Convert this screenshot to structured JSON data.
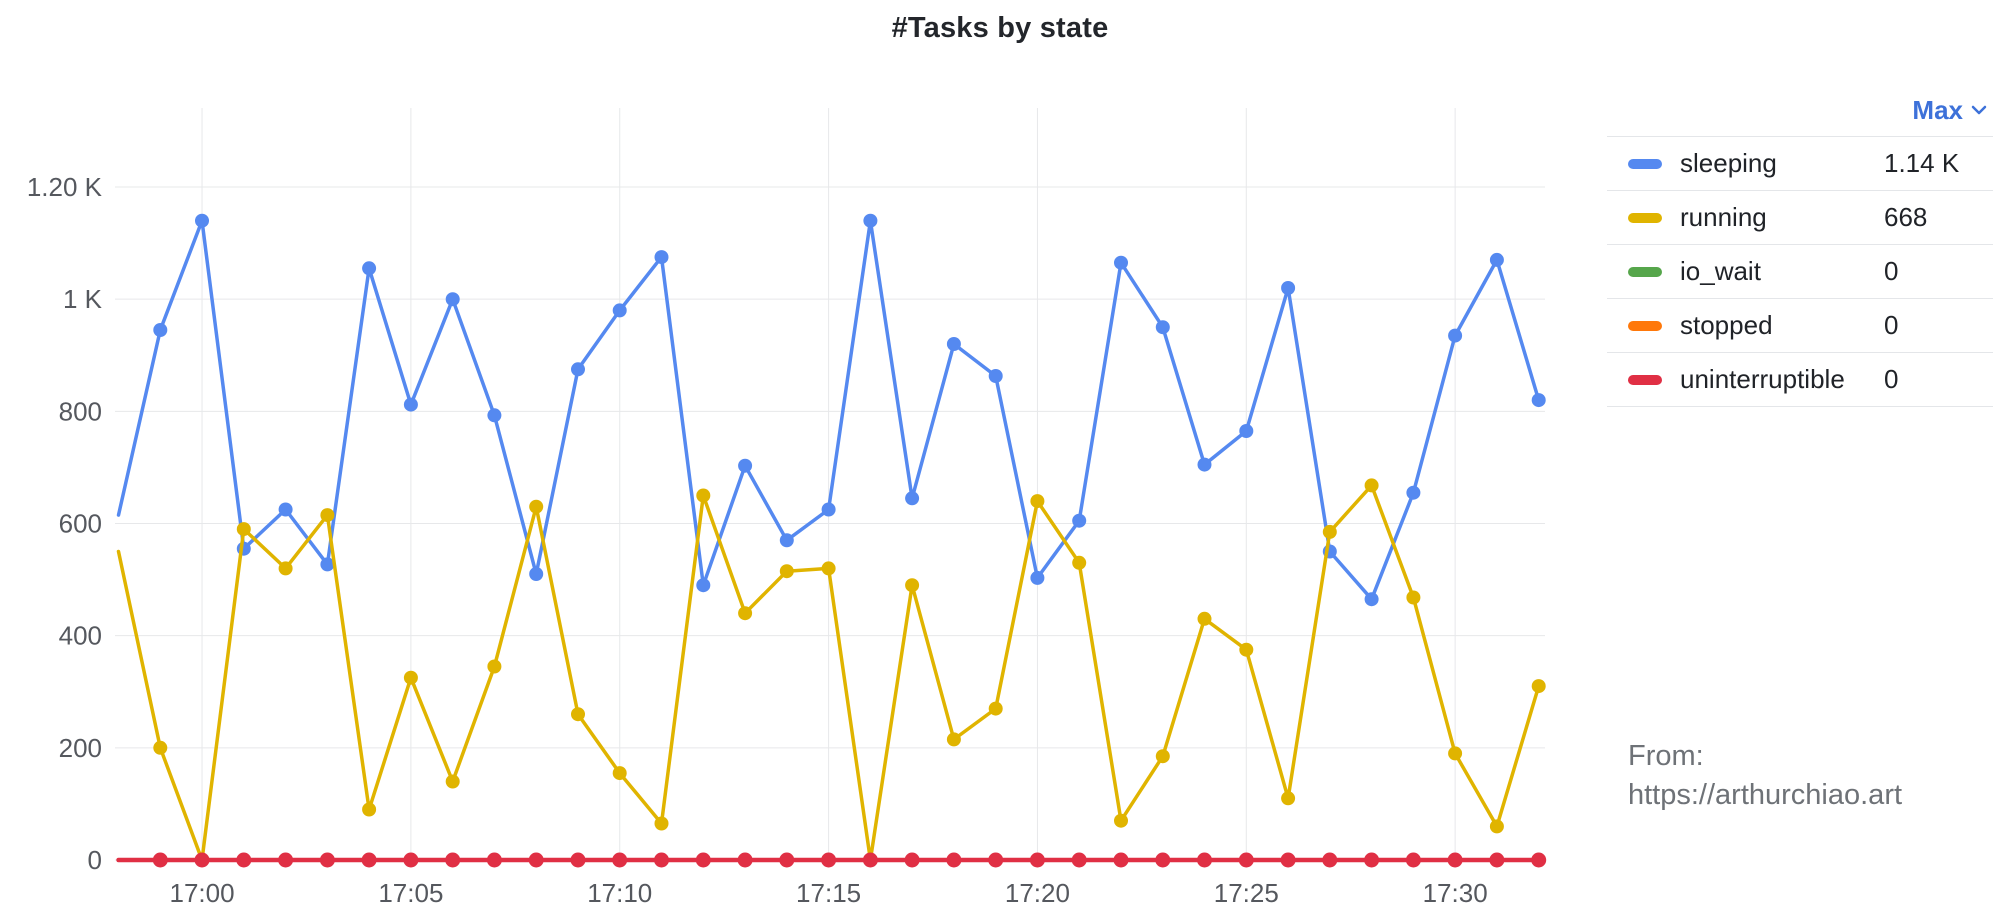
{
  "title": "#Tasks by state",
  "legend": {
    "header": "Max",
    "rows": [
      {
        "label": "sleeping",
        "value": "1.14 K",
        "color": "#5589F0"
      },
      {
        "label": "running",
        "value": "668",
        "color": "#E0B400"
      },
      {
        "label": "io_wait",
        "value": "0",
        "color": "#56A64B"
      },
      {
        "label": "stopped",
        "value": "0",
        "color": "#FF780A"
      },
      {
        "label": "uninterruptible",
        "value": "0",
        "color": "#E02F44"
      }
    ]
  },
  "attribution": {
    "line1": "From:",
    "line2": "https://arthurchiao.art"
  },
  "colors": {
    "grid": "#E7E8EA",
    "axis_text": "#55585E",
    "header_blue": "#3D71D9",
    "separator": "#E4E6E9"
  },
  "chart_data": {
    "type": "line",
    "title": "#Tasks by state",
    "xlabel": "",
    "ylabel": "",
    "ylim": [
      0,
      1270
    ],
    "grid": true,
    "legend_position": "right",
    "x": [
      "16:58",
      "16:59",
      "17:00",
      "17:01",
      "17:02",
      "17:03",
      "17:04",
      "17:05",
      "17:06",
      "17:07",
      "17:08",
      "17:09",
      "17:10",
      "17:11",
      "17:12",
      "17:13",
      "17:14",
      "17:15",
      "17:16",
      "17:17",
      "17:18",
      "17:19",
      "17:20",
      "17:21",
      "17:22",
      "17:23",
      "17:24",
      "17:25",
      "17:26",
      "17:27",
      "17:28",
      "17:29",
      "17:30",
      "17:31",
      "17:32"
    ],
    "x_ticks": [
      "17:00",
      "17:05",
      "17:10",
      "17:15",
      "17:20",
      "17:25",
      "17:30"
    ],
    "y_ticks": [
      {
        "value": 0,
        "label": "0"
      },
      {
        "value": 200,
        "label": "200"
      },
      {
        "value": 400,
        "label": "400"
      },
      {
        "value": 600,
        "label": "600"
      },
      {
        "value": 800,
        "label": "800"
      },
      {
        "value": 1000,
        "label": "1 K"
      },
      {
        "value": 1200,
        "label": "1.20 K"
      }
    ],
    "series": [
      {
        "name": "sleeping",
        "color": "#5589F0",
        "max_label": "1.14 K",
        "values": [
          615,
          945,
          1140,
          555,
          625,
          527,
          1055,
          812,
          1000,
          793,
          510,
          875,
          980,
          1075,
          490,
          703,
          570,
          625,
          1140,
          645,
          920,
          863,
          503,
          605,
          1065,
          950,
          705,
          765,
          1020,
          550,
          465,
          655,
          935,
          1070,
          820
        ]
      },
      {
        "name": "running",
        "color": "#E0B400",
        "max_label": "668",
        "values": [
          550,
          200,
          0,
          590,
          520,
          615,
          90,
          325,
          140,
          345,
          630,
          260,
          155,
          65,
          650,
          440,
          515,
          520,
          0,
          490,
          215,
          270,
          640,
          530,
          70,
          185,
          430,
          375,
          110,
          585,
          668,
          468,
          190,
          60,
          310
        ]
      },
      {
        "name": "io_wait",
        "color": "#56A64B",
        "max_label": "0",
        "values": [
          0,
          0,
          0,
          0,
          0,
          0,
          0,
          0,
          0,
          0,
          0,
          0,
          0,
          0,
          0,
          0,
          0,
          0,
          0,
          0,
          0,
          0,
          0,
          0,
          0,
          0,
          0,
          0,
          0,
          0,
          0,
          0,
          0,
          0,
          0
        ]
      },
      {
        "name": "stopped",
        "color": "#FF780A",
        "max_label": "0",
        "values": [
          0,
          0,
          0,
          0,
          0,
          0,
          0,
          0,
          0,
          0,
          0,
          0,
          0,
          0,
          0,
          0,
          0,
          0,
          0,
          0,
          0,
          0,
          0,
          0,
          0,
          0,
          0,
          0,
          0,
          0,
          0,
          0,
          0,
          0,
          0
        ]
      },
      {
        "name": "uninterruptible",
        "color": "#E02F44",
        "max_label": "0",
        "values": [
          0,
          0,
          0,
          0,
          0,
          0,
          0,
          0,
          0,
          0,
          0,
          0,
          0,
          0,
          0,
          0,
          0,
          0,
          0,
          0,
          0,
          0,
          0,
          0,
          0,
          0,
          0,
          0,
          0,
          0,
          0,
          0,
          0,
          0,
          0
        ]
      }
    ]
  }
}
